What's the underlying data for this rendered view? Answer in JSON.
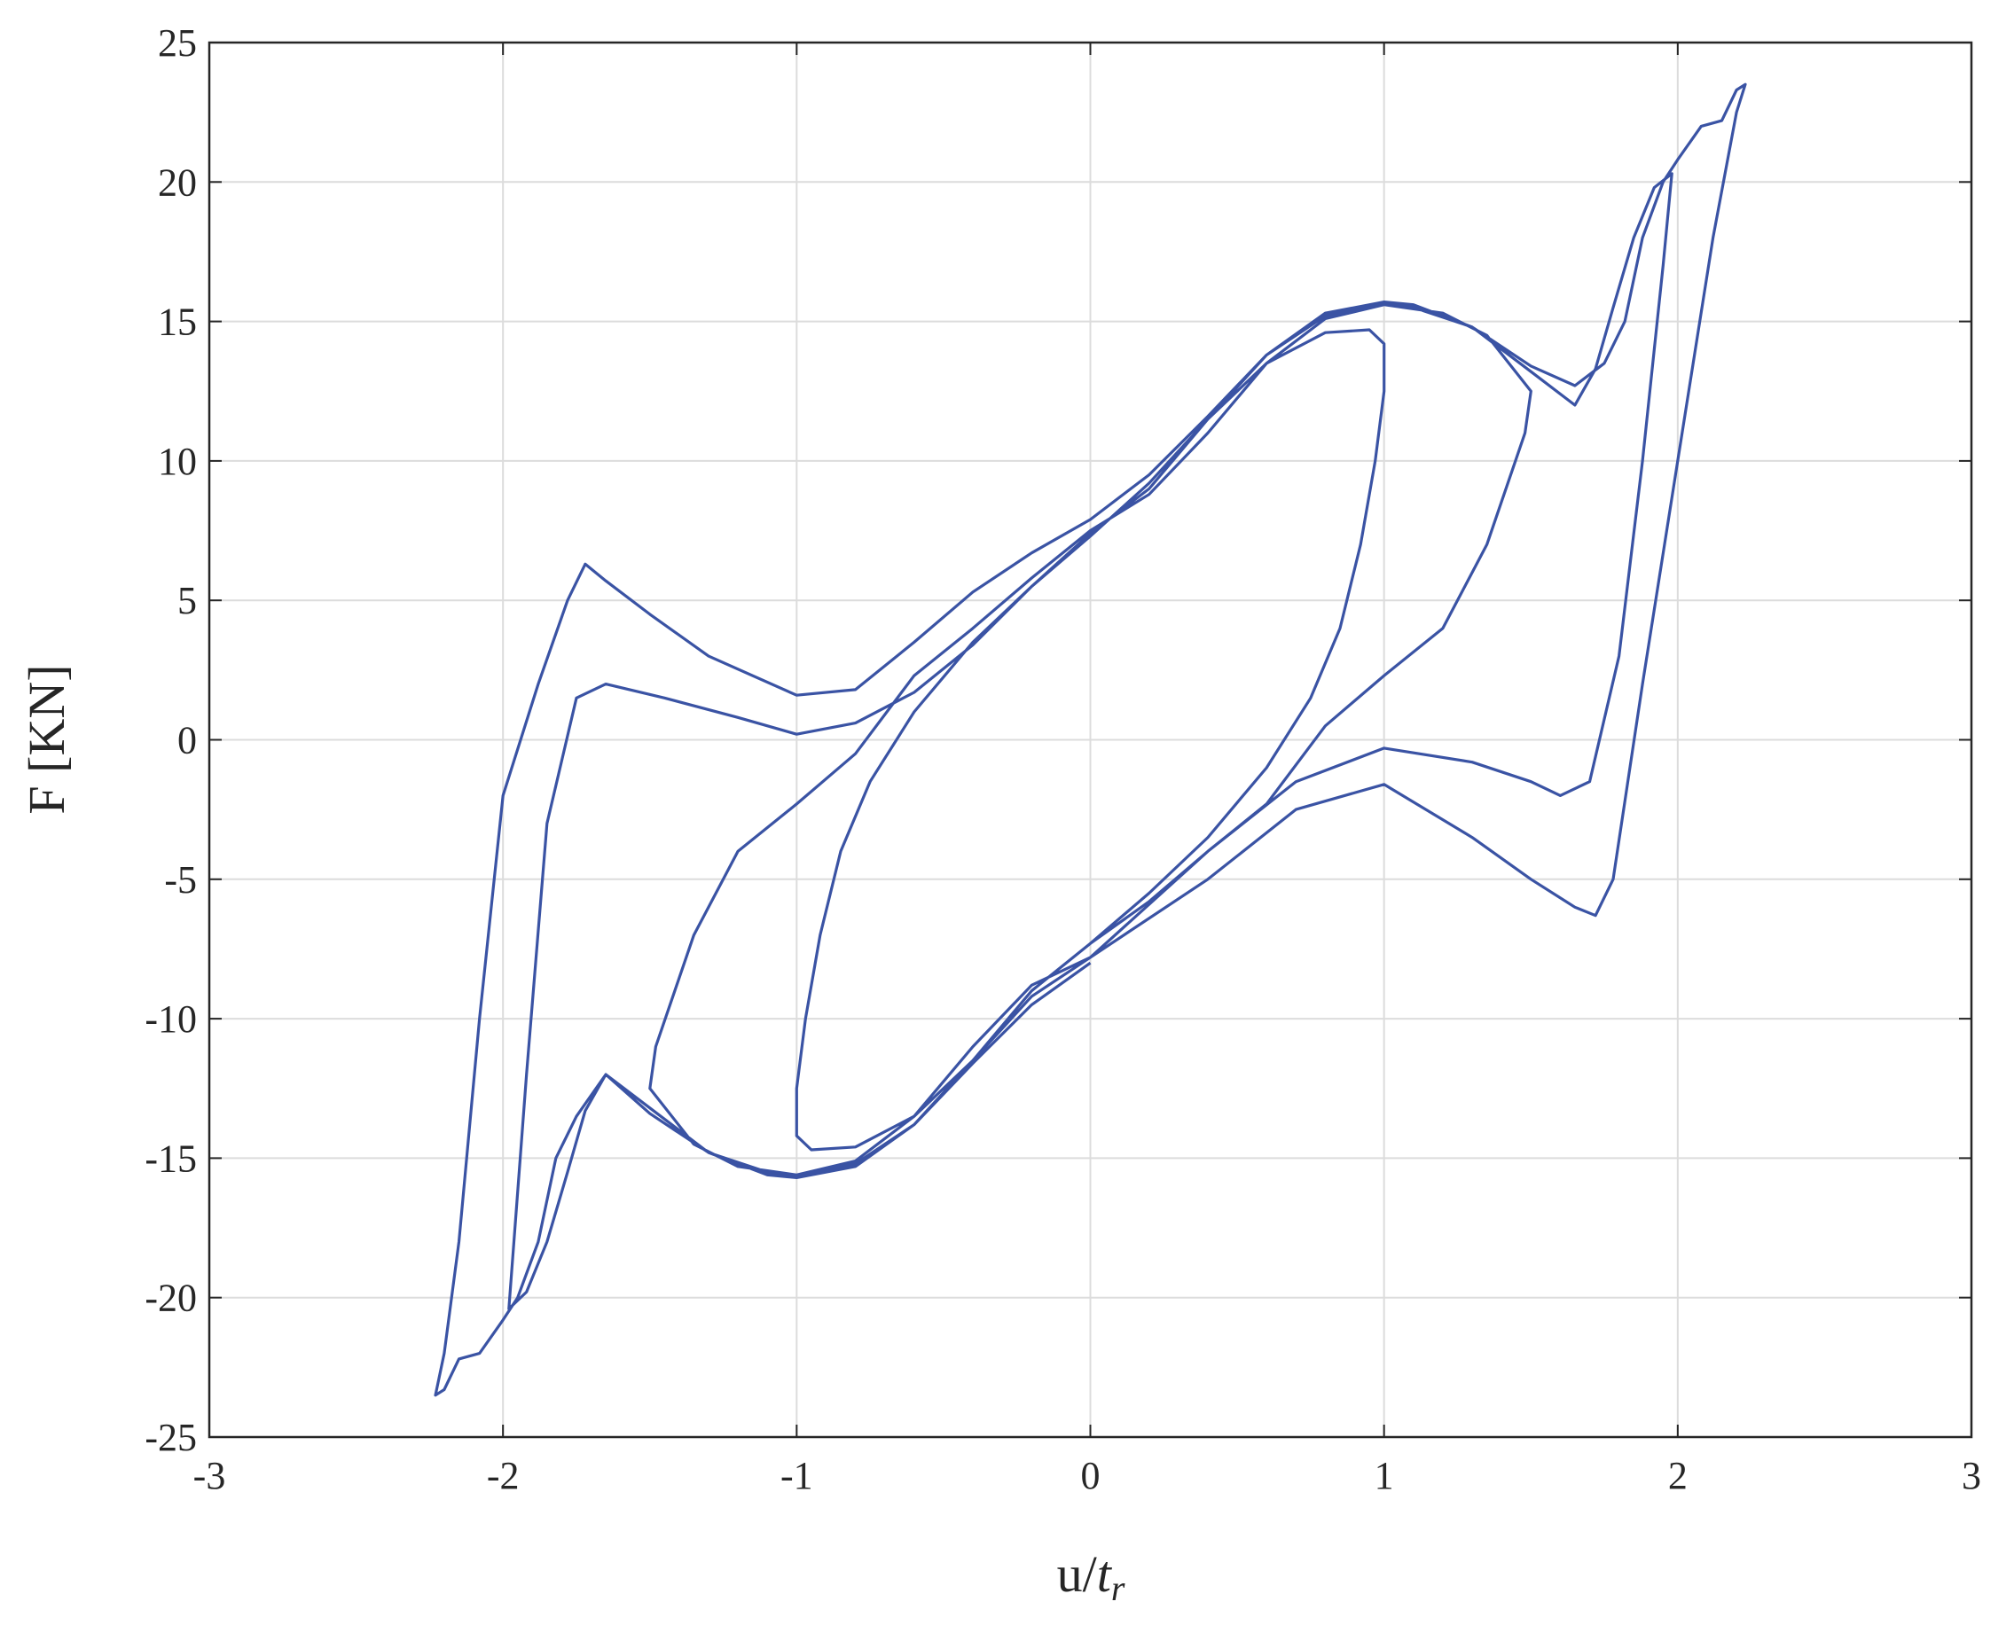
{
  "chart_data": {
    "type": "line",
    "xlabel": [
      "u/",
      "t",
      "r"
    ],
    "ylabel": "F [KN]",
    "xlim": [
      -3,
      3
    ],
    "ylim": [
      -25,
      25
    ],
    "xticks": [
      -3,
      -2,
      -1,
      0,
      1,
      2,
      3
    ],
    "yticks": [
      -25,
      -20,
      -15,
      -10,
      -5,
      0,
      5,
      10,
      15,
      20,
      25
    ],
    "grid": true,
    "color": "#3a53a4",
    "x": [
      0.0,
      0.2,
      0.4,
      0.6,
      0.75,
      0.85,
      0.92,
      0.97,
      1.0,
      1.0,
      0.95,
      0.8,
      0.6,
      0.4,
      0.2,
      0.0,
      -0.2,
      -0.4,
      -0.6,
      -0.75,
      -0.85,
      -0.92,
      -0.97,
      -1.0,
      -1.0,
      -0.95,
      -0.8,
      -0.6,
      -0.4,
      -0.2,
      0.0,
      0.2,
      0.4,
      0.6,
      0.8,
      1.0,
      1.2,
      1.35,
      1.48,
      1.5,
      1.35,
      1.2,
      1.0,
      0.8,
      0.6,
      0.4,
      0.2,
      0.0,
      -0.2,
      -0.4,
      -0.6,
      -0.8,
      -1.0,
      -1.2,
      -1.35,
      -1.48,
      -1.5,
      -1.35,
      -1.2,
      -1.0,
      -0.8,
      -0.6,
      -0.4,
      -0.2,
      0.0,
      0.4,
      0.7,
      1.0,
      1.3,
      1.5,
      1.6,
      1.7,
      1.8,
      1.88,
      1.95,
      1.98,
      1.92,
      1.85,
      1.78,
      1.72,
      1.65,
      1.5,
      1.3,
      1.1,
      1.0,
      0.8,
      0.6,
      0.4,
      0.2,
      0.0,
      -0.2,
      -0.4,
      -0.6,
      -0.8,
      -1.0,
      -1.2,
      -1.45,
      -1.65,
      -1.75,
      -1.85,
      -1.92,
      -1.98,
      -1.92,
      -1.85,
      -1.78,
      -1.72,
      -1.65,
      -1.5,
      -1.3,
      -1.1,
      -1.0,
      -0.8,
      -0.6,
      -0.4,
      -0.2,
      0.0,
      0.4,
      0.7,
      1.0,
      1.3,
      1.5,
      1.65,
      1.72,
      1.78,
      1.88,
      2.0,
      2.12,
      2.2,
      2.23,
      2.2,
      2.15,
      2.08,
      2.0,
      1.95,
      1.88,
      1.82,
      1.75,
      1.65,
      1.5,
      1.3,
      1.1,
      1.0,
      0.8,
      0.6,
      0.4,
      0.2,
      0.0,
      -0.2,
      -0.4,
      -0.6,
      -0.8,
      -1.0,
      -1.3,
      -1.5,
      -1.65,
      -1.72,
      -1.78,
      -1.88,
      -2.0,
      -2.08,
      -2.15,
      -2.2,
      -2.23,
      -2.2,
      -2.15,
      -2.08,
      -2.0,
      -1.95,
      -1.88,
      -1.82,
      -1.75,
      -1.65,
      -1.5,
      -1.3,
      -1.1,
      -1.0,
      -0.8,
      -0.6,
      -0.4,
      -0.2,
      0.0
    ],
    "values": [
      -7.3,
      -5.5,
      -3.5,
      -1,
      1.5,
      4,
      7,
      10,
      12.5,
      14.2,
      14.7,
      14.6,
      13.5,
      11.5,
      9,
      7.4,
      5.5,
      3.5,
      1,
      -1.5,
      -4,
      -7,
      -10,
      -12.5,
      -14.2,
      -14.7,
      -14.6,
      -13.5,
      -11.5,
      -9,
      -7.3,
      -5.8,
      -4,
      -2.3,
      0.5,
      2.3,
      4,
      7,
      11,
      12.5,
      14.5,
      15.3,
      15.6,
      15.1,
      13.5,
      11,
      8.8,
      7.5,
      5.8,
      4,
      2.3,
      -0.5,
      -2.3,
      -4,
      -7,
      -11,
      -12.5,
      -14.5,
      -15.3,
      -15.6,
      -15.1,
      -13.5,
      -11,
      -8.8,
      -7.8,
      -4,
      -1.5,
      -0.3,
      -0.8,
      -1.5,
      -2,
      -1.5,
      3,
      10,
      17,
      20.3,
      19.8,
      18,
      15.5,
      13.3,
      12,
      13.2,
      14.8,
      15.5,
      15.6,
      15.2,
      13.8,
      11.5,
      9.2,
      7.3,
      5.5,
      3.4,
      1.7,
      0.6,
      0.2,
      0.8,
      1.5,
      2,
      1.5,
      -3,
      -12,
      -20.4,
      -19.8,
      -18,
      -15.5,
      -13.3,
      -12,
      -13.2,
      -14.8,
      -15.5,
      -15.6,
      -15.2,
      -13.8,
      -11.5,
      -9.2,
      -7.8,
      -5,
      -2.5,
      -1.6,
      -3.5,
      -5,
      -6,
      -6.3,
      -5,
      2,
      10,
      18,
      22.5,
      23.5,
      23.3,
      22.2,
      22,
      20.8,
      20,
      18,
      15,
      13.5,
      12.7,
      13.4,
      14.8,
      15.6,
      15.7,
      15.3,
      13.8,
      11.6,
      9.5,
      7.9,
      6.7,
      5.3,
      3.5,
      1.8,
      1.6,
      3,
      4.5,
      5.7,
      6.3,
      5,
      2,
      -2,
      -10,
      -18,
      -22,
      -23.5,
      -23.3,
      -22.2,
      -22,
      -20.8,
      -20,
      -18,
      -15,
      -13.5,
      -12,
      -13.4,
      -14.8,
      -15.6,
      -15.7,
      -15.3,
      -13.8,
      -11.6,
      -9.5,
      -8
    ]
  }
}
